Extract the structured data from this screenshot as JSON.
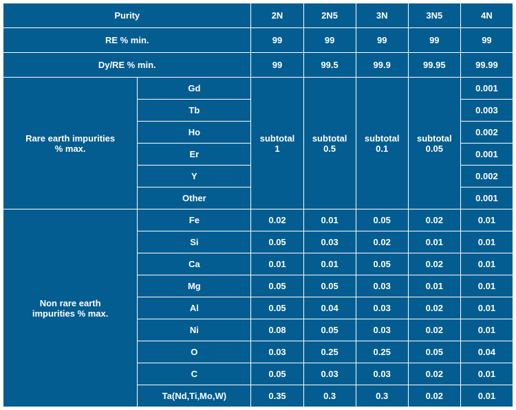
{
  "colors": {
    "header_bg": "#045d91",
    "header_text": "#ffffff",
    "border": "#ffffff"
  },
  "columns": [
    "2N",
    "2N5",
    "3N",
    "3N5",
    "4N"
  ],
  "rows": {
    "purity": "Purity",
    "re_min": {
      "label": "RE % min.",
      "vals": [
        "99",
        "99",
        "99",
        "99",
        "99"
      ]
    },
    "dy_re_min": {
      "label": "Dy/RE % min.",
      "vals": [
        "99",
        "99.5",
        "99.9",
        "99.95",
        "99.99"
      ]
    }
  },
  "rare_earth": {
    "label": "Rare earth impurities\n% max.",
    "elements": [
      "Gd",
      "Tb",
      "Ho",
      "Er",
      "Y",
      "Other"
    ],
    "subtotals": [
      "subtotal\n1",
      "subtotal\n0.5",
      "subtotal\n0.1",
      "subtotal\n0.05"
    ],
    "fourN_vals": [
      "0.001",
      "0.003",
      "0.002",
      "0.001",
      "0.002",
      "0.001"
    ]
  },
  "non_rare_earth": {
    "label": "Non rare earth\nimpurities % max.",
    "rows": [
      {
        "el": "Fe",
        "vals": [
          "0.02",
          "0.01",
          "0.05",
          "0.02",
          "0.01"
        ]
      },
      {
        "el": "Si",
        "vals": [
          "0.05",
          "0.03",
          "0.02",
          "0.01",
          "0.01"
        ]
      },
      {
        "el": "Ca",
        "vals": [
          "0.01",
          "0.01",
          "0.05",
          "0.02",
          "0.01"
        ]
      },
      {
        "el": "Mg",
        "vals": [
          "0.05",
          "0.05",
          "0.03",
          "0.01",
          "0.01"
        ]
      },
      {
        "el": "Al",
        "vals": [
          "0.05",
          "0.04",
          "0.03",
          "0.02",
          "0.01"
        ]
      },
      {
        "el": "Ni",
        "vals": [
          "0.08",
          "0.05",
          "0.03",
          "0.02",
          "0.01"
        ]
      },
      {
        "el": "O",
        "vals": [
          "0.03",
          "0.25",
          "0.25",
          "0.05",
          "0.04"
        ]
      },
      {
        "el": "C",
        "vals": [
          "0.05",
          "0.03",
          "0.03",
          "0.02",
          "0.01"
        ]
      },
      {
        "el": "Ta(Nd,Ti,Mo,W)",
        "vals": [
          "0.35",
          "0.3",
          "0.3",
          "0.02",
          "0.01"
        ]
      }
    ]
  }
}
